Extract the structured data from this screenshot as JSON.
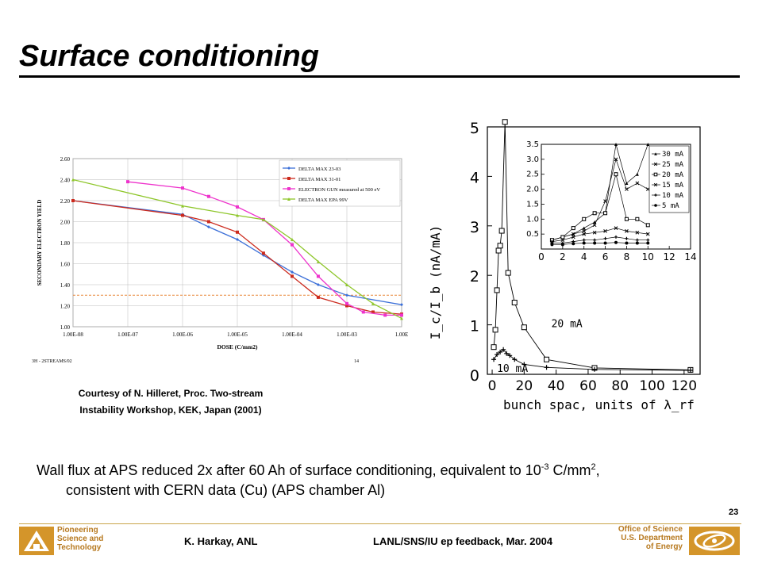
{
  "slide": {
    "title": "Surface conditioning",
    "credit_line1": "Courtesy of N. Hilleret, Proc. Two-stream",
    "credit_line2": "Instability Workshop, KEK, Japan (2001)",
    "caption_line1_a": "Wall flux at APS reduced 2x after 60 Ah of surface conditioning, equivalent to 10",
    "caption_exp1": "-3",
    "caption_line1_b": " C/mm",
    "caption_exp2": "2",
    "caption_line1_c": ",",
    "caption_line2": "consistent with CERN data (Cu) (APS chamber Al)"
  },
  "footer": {
    "org_line1": "Pioneering",
    "org_line2": "Science and",
    "org_line3": "Technology",
    "author": "K. Harkay, ANL",
    "event": "LANL/SNS/IU ep feedback, Mar. 2004",
    "doe_line1": "Office of Science",
    "doe_line2": "U.S. Department",
    "doe_line3": "of Energy",
    "page": "23"
  },
  "chart_data": [
    {
      "type": "line",
      "ylabel": "SECONDARY ELECTRON YIELD",
      "xlabel": "DOSE (C/mm2)",
      "x_scale": "log",
      "xlim": [
        1e-08,
        0.01
      ],
      "ylim": [
        1.0,
        2.6
      ],
      "x_ticks": [
        "1.00E-08",
        "1.00E-07",
        "1.00E-06",
        "1.00E-05",
        "1.00E-04",
        "1.00E-03",
        "1.00E"
      ],
      "y_ticks": [
        "1.00",
        "1.20",
        "1.40",
        "1.60",
        "1.80",
        "2.00",
        "2.20",
        "2.40",
        "2.60"
      ],
      "footnote_left": "3H - 2STREAMS/02",
      "footnote_right": "14",
      "reference_line_y": 1.3,
      "reference_color": "#e8873a",
      "legend_position": "top-right",
      "series": [
        {
          "name": "DELTA MAX 23-03",
          "color": "#3b6fd8",
          "marker": "diamond",
          "x": [
            1e-08,
            1e-06,
            3e-06,
            1e-05,
            3e-05,
            0.0001,
            0.0003,
            0.001,
            0.01
          ],
          "y": [
            2.2,
            2.07,
            1.95,
            1.83,
            1.68,
            1.52,
            1.4,
            1.3,
            1.21
          ]
        },
        {
          "name": "DELTA MAX 31-01",
          "color": "#cc2a1d",
          "marker": "square",
          "x": [
            1e-08,
            1e-06,
            3e-06,
            1e-05,
            3e-05,
            0.0001,
            0.0003,
            0.001,
            0.003,
            0.01
          ],
          "y": [
            2.2,
            2.06,
            2.0,
            1.9,
            1.7,
            1.48,
            1.28,
            1.2,
            1.14,
            1.12
          ]
        },
        {
          "name": "ELECTRON GUN  measured at 500 eV",
          "color": "#ee33cc",
          "marker": "square",
          "x": [
            1e-07,
            1e-06,
            3e-06,
            1e-05,
            3e-05,
            0.0001,
            0.0003,
            0.001,
            0.002,
            0.005,
            0.01
          ],
          "y": [
            2.38,
            2.32,
            2.24,
            2.14,
            2.02,
            1.78,
            1.48,
            1.22,
            1.14,
            1.11,
            1.11
          ]
        },
        {
          "name": "DELTA MAX EPA 99V",
          "color": "#8ec62a",
          "marker": "triangle",
          "x": [
            1e-08,
            1e-06,
            1e-05,
            3e-05,
            0.0001,
            0.0003,
            0.001,
            0.003,
            0.01
          ],
          "y": [
            2.4,
            2.15,
            2.06,
            2.02,
            1.83,
            1.62,
            1.4,
            1.22,
            1.08
          ]
        }
      ]
    },
    {
      "type": "line",
      "ylabel": "I_c/I_b (nA/mA)",
      "xlabel": "bunch spac, units of λ_rf",
      "xlim": [
        -3,
        130
      ],
      "ylim": [
        0,
        5
      ],
      "x_ticks": [
        "0",
        "20",
        "40",
        "60",
        "80",
        "100",
        "120"
      ],
      "y_ticks": [
        "0",
        "1",
        "2",
        "3",
        "4",
        "5"
      ],
      "series": [
        {
          "name": "20 mA",
          "color": "#000000",
          "marker": "square",
          "x": [
            1,
            2,
            3,
            4,
            5,
            6,
            8,
            10,
            14,
            20,
            34,
            64,
            124
          ],
          "y": [
            0.55,
            0.9,
            1.7,
            2.5,
            2.6,
            2.9,
            5.1,
            2.05,
            1.45,
            0.95,
            0.3,
            0.13,
            0.09
          ]
        },
        {
          "name": "10 mA",
          "color": "#000000",
          "marker": "plus",
          "x": [
            1,
            3,
            5,
            7,
            9,
            11,
            14,
            20,
            34,
            64,
            124
          ],
          "y": [
            0.3,
            0.4,
            0.45,
            0.5,
            0.42,
            0.38,
            0.3,
            0.2,
            0.14,
            0.1,
            0.08
          ]
        }
      ],
      "inset": {
        "xlim": [
          0,
          14
        ],
        "ylim": [
          0,
          3.5
        ],
        "x_ticks": [
          "0",
          "2",
          "4",
          "6",
          "8",
          "10",
          "12",
          "14"
        ],
        "y_ticks": [
          "0.5",
          "1.0",
          "1.5",
          "2.0",
          "2.5",
          "3.0",
          "3.5"
        ],
        "legend": [
          "30 mA",
          "25 mA",
          "20 mA",
          "15 mA",
          "10 mA",
          "5 mA"
        ],
        "series": [
          {
            "name": "30 mA",
            "x": [
              1,
              2,
              3,
              4,
              5,
              6,
              7,
              8,
              9,
              10
            ],
            "y": [
              0.3,
              0.4,
              0.5,
              0.7,
              0.9,
              1.2,
              3.5,
              2.2,
              2.5,
              3.5
            ]
          },
          {
            "name": "25 mA",
            "x": [
              1,
              2,
              3,
              4,
              5,
              6,
              7,
              8,
              9,
              10
            ],
            "y": [
              0.3,
              0.4,
              0.5,
              0.6,
              0.8,
              1.6,
              3.0,
              2.0,
              2.2,
              2.0
            ]
          },
          {
            "name": "20 mA",
            "x": [
              1,
              2,
              3,
              4,
              5,
              6,
              7,
              8,
              9,
              10
            ],
            "y": [
              0.3,
              0.4,
              0.7,
              1.0,
              1.2,
              1.2,
              2.5,
              1.0,
              1.0,
              0.8
            ]
          },
          {
            "name": "15 mA",
            "x": [
              1,
              2,
              3,
              4,
              5,
              6,
              7,
              8,
              9,
              10
            ],
            "y": [
              0.25,
              0.3,
              0.4,
              0.5,
              0.55,
              0.6,
              0.7,
              0.6,
              0.55,
              0.5
            ]
          },
          {
            "name": "10 mA",
            "x": [
              1,
              2,
              3,
              4,
              5,
              6,
              7,
              8,
              9,
              10
            ],
            "y": [
              0.2,
              0.2,
              0.25,
              0.3,
              0.3,
              0.35,
              0.4,
              0.35,
              0.3,
              0.3
            ]
          },
          {
            "name": "5 mA",
            "x": [
              1,
              2,
              3,
              4,
              5,
              6,
              7,
              8,
              9,
              10
            ],
            "y": [
              0.15,
              0.15,
              0.18,
              0.2,
              0.2,
              0.2,
              0.22,
              0.2,
              0.2,
              0.2
            ]
          }
        ]
      }
    }
  ]
}
